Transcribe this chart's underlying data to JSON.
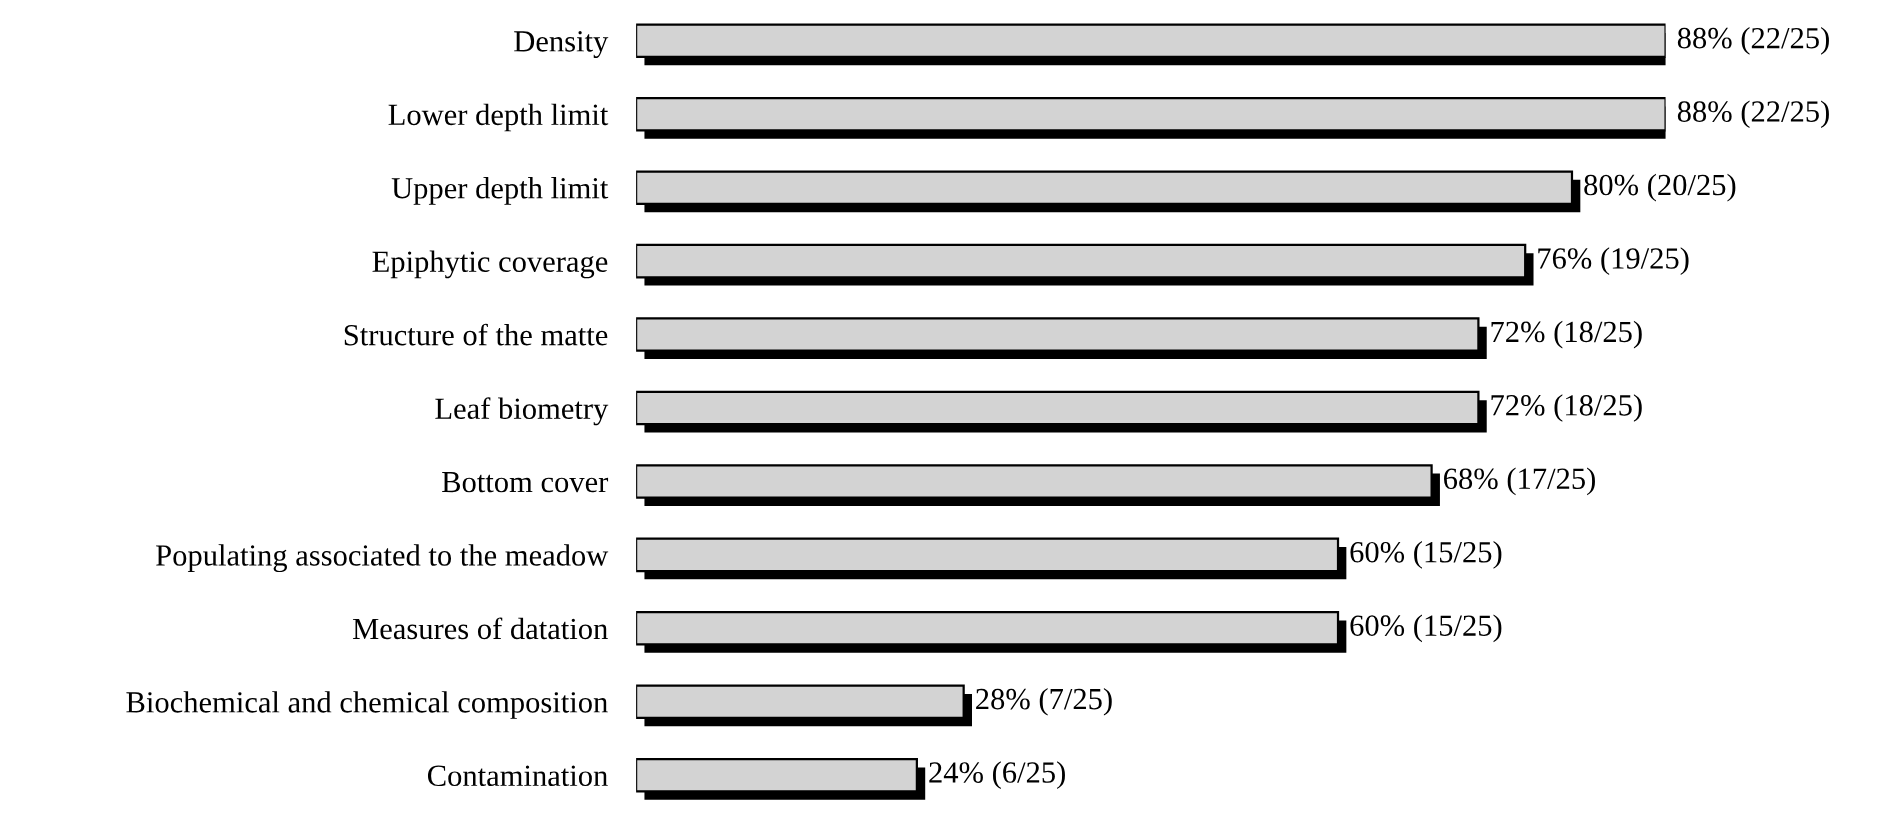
{
  "chart_data": {
    "type": "bar",
    "orientation": "horizontal",
    "categories": [
      "Density",
      "Lower depth limit",
      "Upper depth limit",
      "Epiphytic coverage",
      "Structure of the matte",
      "Leaf biometry",
      "Bottom cover",
      "Populating associated to the meadow",
      "Measures of datation",
      "Biochemical and chemical composition",
      "Contamination"
    ],
    "values": [
      88,
      88,
      80,
      76,
      72,
      72,
      68,
      60,
      60,
      28,
      24
    ],
    "value_labels": [
      "88% (22/25)",
      "88% (22/25)",
      "80% (20/25)",
      "76% (19/25)",
      "72% (18/25)",
      "72% (18/25)",
      "68% (17/25)",
      "60% (15/25)",
      "60% (15/25)",
      "28% (7/25)",
      "24% (6/25)"
    ],
    "color": "#d3d3d3",
    "grid": false,
    "legend": false
  }
}
